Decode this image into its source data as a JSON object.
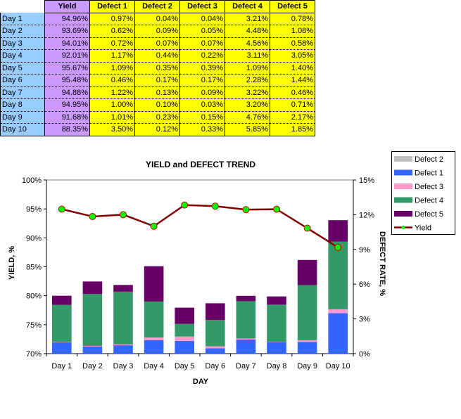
{
  "table": {
    "headers": [
      "Yield",
      "Defect 1",
      "Defect 2",
      "Defect 3",
      "Defect 4",
      "Defect 5"
    ],
    "rows": [
      [
        "Day 1",
        "94.96%",
        "0.97%",
        "0.04%",
        "0.04%",
        "3.21%",
        "0.78%"
      ],
      [
        "Day 2",
        "93.69%",
        "0.62%",
        "0.09%",
        "0.05%",
        "4.48%",
        "1.08%"
      ],
      [
        "Day 3",
        "94.01%",
        "0.72%",
        "0.07%",
        "0.07%",
        "4.56%",
        "0.58%"
      ],
      [
        "Day 4",
        "92.01%",
        "1.17%",
        "0.44%",
        "0.22%",
        "3.11%",
        "3.05%"
      ],
      [
        "Day 5",
        "95.67%",
        "1.09%",
        "0.35%",
        "0.39%",
        "1.09%",
        "1.40%"
      ],
      [
        "Day 6",
        "95.48%",
        "0.46%",
        "0.17%",
        "0.17%",
        "2.28%",
        "1.44%"
      ],
      [
        "Day 7",
        "94.88%",
        "1.22%",
        "0.13%",
        "0.09%",
        "3.22%",
        "0.46%"
      ],
      [
        "Day 8",
        "94.95%",
        "1.00%",
        "0.10%",
        "0.03%",
        "3.20%",
        "0.71%"
      ],
      [
        "Day 9",
        "91.68%",
        "1.01%",
        "0.23%",
        "0.15%",
        "4.76%",
        "2.17%"
      ],
      [
        "Day 10",
        "88.35%",
        "3.50%",
        "0.12%",
        "0.33%",
        "5.85%",
        "1.85%"
      ]
    ]
  },
  "chart_data": {
    "type": "bar+line",
    "title": "YIELD and DEFECT TREND",
    "xlabel": "DAY",
    "ylabel": "YIELD, %",
    "y2label": "DEFECT RATE, %",
    "categories": [
      "Day 1",
      "Day 2",
      "Day 3",
      "Day 4",
      "Day 5",
      "Day 6",
      "Day 7",
      "Day 8",
      "Day 9",
      "Day 10"
    ],
    "ylim": [
      70,
      100
    ],
    "y2lim": [
      0,
      15
    ],
    "yticks": [
      "70%",
      "75%",
      "80%",
      "85%",
      "90%",
      "95%",
      "100%"
    ],
    "y2ticks": [
      "0%",
      "3%",
      "6%",
      "9%",
      "12%",
      "15%"
    ],
    "stacked_series": [
      {
        "name": "Defect 1",
        "color": "#3366ff",
        "values": [
          0.97,
          0.62,
          0.72,
          1.17,
          1.09,
          0.46,
          1.22,
          1.0,
          1.01,
          3.5
        ]
      },
      {
        "name": "Defect 3",
        "color": "#ff99cc",
        "values": [
          0.04,
          0.05,
          0.07,
          0.22,
          0.39,
          0.17,
          0.09,
          0.03,
          0.15,
          0.33
        ]
      },
      {
        "name": "Defect 4",
        "color": "#339966",
        "values": [
          3.21,
          4.48,
          4.56,
          3.11,
          1.09,
          2.28,
          3.22,
          3.2,
          4.76,
          5.85
        ]
      },
      {
        "name": "Defect 5",
        "color": "#660066",
        "values": [
          0.78,
          1.08,
          0.58,
          3.05,
          1.4,
          1.44,
          0.46,
          0.71,
          2.17,
          1.85
        ]
      }
    ],
    "line_series": {
      "name": "Yield",
      "color": "#800000",
      "marker": "#00ff00",
      "values": [
        94.96,
        93.69,
        94.01,
        92.01,
        95.67,
        95.48,
        94.88,
        94.95,
        91.68,
        88.35
      ]
    },
    "legend": [
      {
        "name": "Defect 2",
        "color": "#c0c0c0"
      },
      {
        "name": "Defect 1",
        "color": "#3366ff"
      },
      {
        "name": "Defect 3",
        "color": "#ff99cc"
      },
      {
        "name": "Defect 4",
        "color": "#339966"
      },
      {
        "name": "Defect 5",
        "color": "#660066"
      },
      {
        "name": "Yield",
        "color": "#800000"
      }
    ],
    "legend_position": "top-right"
  }
}
